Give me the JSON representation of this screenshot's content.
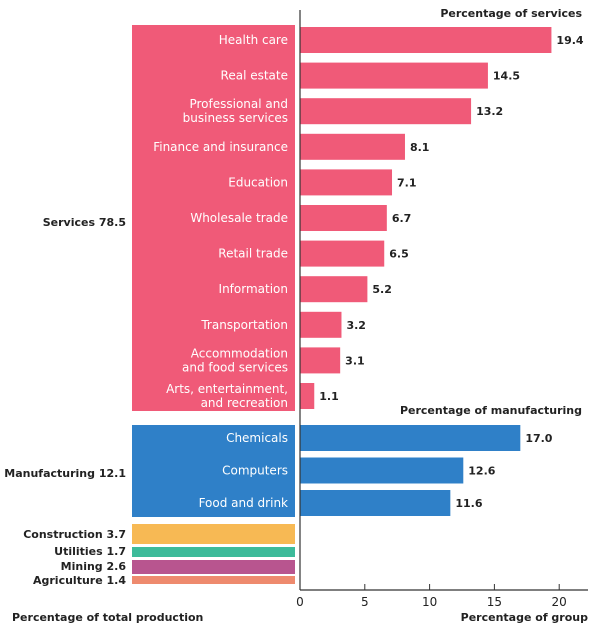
{
  "chart_data": {
    "type": "bar",
    "colors": {
      "services": "#f05a78",
      "manufacturing": "#2f80c8",
      "construction": "#f7b954",
      "utilities": "#3dbb9a",
      "mining": "#b8558f",
      "agriculture": "#ee8a6e"
    },
    "total_production": {
      "label": "Percentage of total production",
      "groups": [
        {
          "key": "services",
          "label": "Services 78.5",
          "value": 78.5
        },
        {
          "key": "manufacturing",
          "label": "Manufacturing 12.1",
          "value": 12.1
        },
        {
          "key": "construction",
          "label": "Construction 3.7",
          "value": 3.7
        },
        {
          "key": "utilities",
          "label": "Utilities 1.7",
          "value": 1.7
        },
        {
          "key": "mining",
          "label": "Mining 2.6",
          "value": 2.6
        },
        {
          "key": "agriculture",
          "label": "Agriculture 1.4",
          "value": 1.4
        }
      ]
    },
    "services": {
      "title": "Percentage of services",
      "categories": [
        [
          "Health care"
        ],
        [
          "Real estate"
        ],
        [
          "Professional and",
          "business services"
        ],
        [
          "Finance and insurance"
        ],
        [
          "Education"
        ],
        [
          "Wholesale trade"
        ],
        [
          "Retail trade"
        ],
        [
          "Information"
        ],
        [
          "Transportation"
        ],
        [
          "Accommodation",
          "and food services"
        ],
        [
          "Arts, entertainment,",
          "and recreation"
        ]
      ],
      "values": [
        19.4,
        14.5,
        13.2,
        8.1,
        7.1,
        6.7,
        6.5,
        5.2,
        3.2,
        3.1,
        1.1
      ],
      "value_labels": [
        "19.4",
        "14.5",
        "13.2",
        "8.1",
        "7.1",
        "6.7",
        "6.5",
        "5.2",
        "3.2",
        "3.1",
        "1.1"
      ]
    },
    "manufacturing": {
      "title": "Percentage of manufacturing",
      "categories": [
        [
          "Chemicals"
        ],
        [
          "Computers"
        ],
        [
          "Food and drink"
        ]
      ],
      "values": [
        17.0,
        12.6,
        11.6
      ],
      "value_labels": [
        "17.0",
        "12.6",
        "11.6"
      ]
    },
    "x_axis": {
      "label": "Percentage of group",
      "ticks": [
        0,
        5,
        10,
        15,
        20
      ],
      "tick_labels": [
        "0",
        "5",
        "10",
        "15",
        "20"
      ],
      "range": [
        0,
        22.5
      ]
    }
  }
}
